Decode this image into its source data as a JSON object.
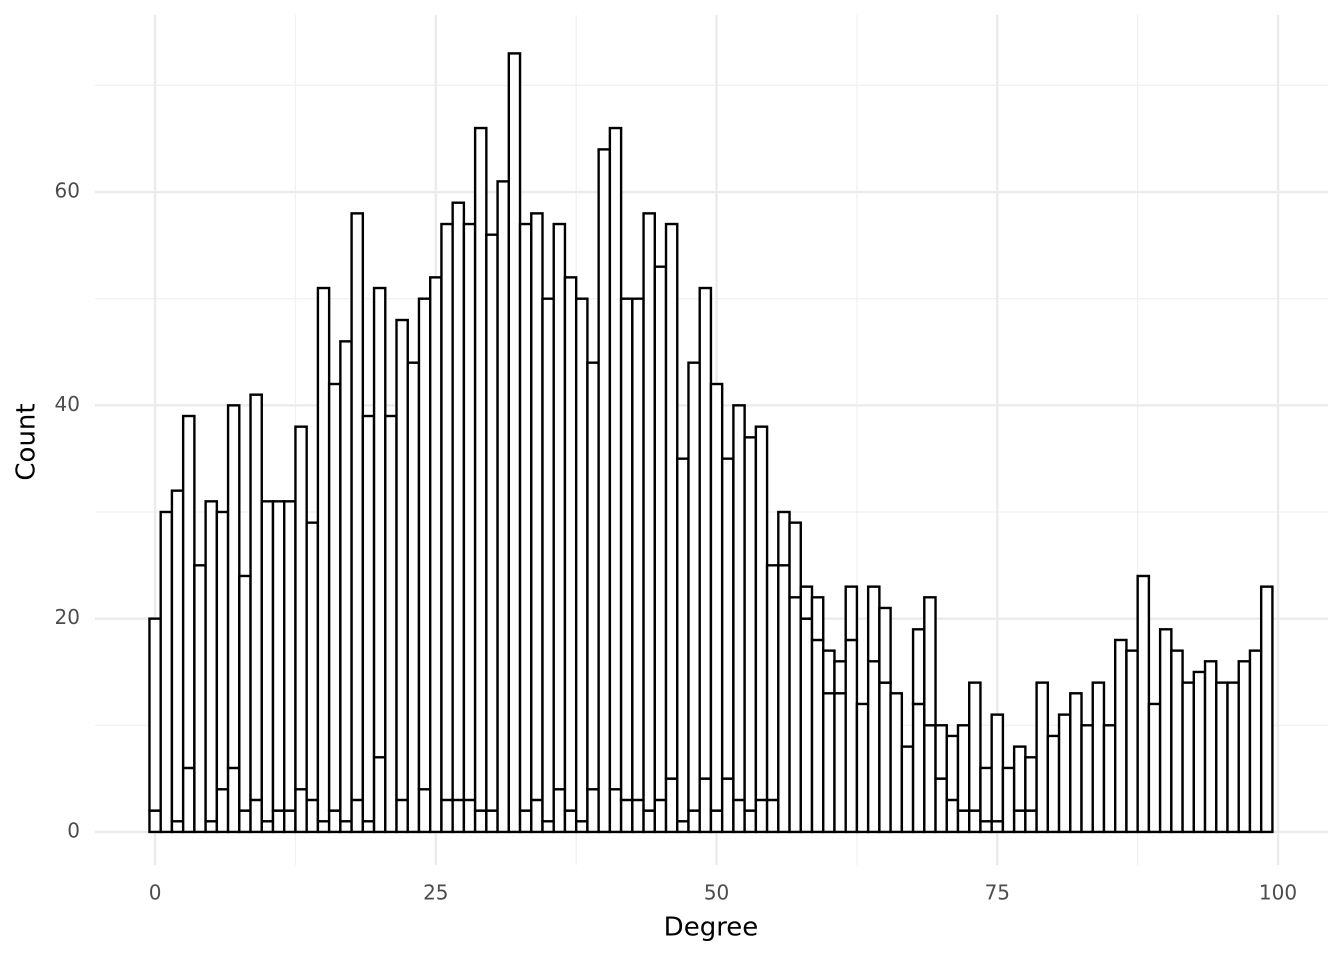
{
  "chart_data": {
    "type": "histogram",
    "x_label": "Degree",
    "y_label": "Count",
    "bins": [
      -0.5,
      0.5,
      1.5,
      2.5,
      3.5,
      4.5,
      5.5,
      6.5,
      7.5,
      8.5,
      9.5,
      10.5,
      11.5,
      12.5,
      13.5,
      14.5,
      15.5,
      16.5,
      17.5,
      18.5,
      19.5,
      20.5,
      21.5,
      22.5,
      23.5,
      24.5,
      25.5,
      26.5,
      27.5,
      28.5,
      29.5,
      30.5,
      31.5,
      32.5,
      33.5,
      34.5,
      35.5,
      36.5,
      37.5,
      38.5,
      39.5,
      40.5,
      41.5,
      42.5,
      43.5,
      44.5,
      45.5,
      46.5,
      47.5,
      48.5,
      49.5,
      50.5,
      51.5,
      52.5,
      53.5,
      54.5,
      55.5,
      56.5,
      57.5,
      58.5,
      59.5,
      60.5,
      61.5,
      62.5,
      63.5,
      64.5,
      65.5,
      66.5,
      67.5,
      68.5,
      69.5,
      70.5,
      71.5,
      72.5,
      73.5,
      74.5,
      75.5,
      76.5,
      77.5,
      78.5,
      79.5,
      80.5,
      81.5,
      82.5,
      83.5,
      84.5,
      85.5,
      86.5,
      87.5,
      88.5,
      89.5,
      90.5,
      91.5,
      92.5,
      93.5,
      94.5,
      95.5,
      96.5,
      97.5,
      98.5,
      99.5
    ],
    "series": [
      {
        "color": "#ffffff",
        "values": [
          2,
          0,
          1,
          6,
          0,
          1,
          4,
          6,
          2,
          3,
          1,
          2,
          2,
          4,
          3,
          1,
          2,
          1,
          3,
          1,
          7,
          0,
          3,
          0,
          4,
          0,
          3,
          3,
          3,
          2,
          2,
          0,
          0,
          2,
          3,
          1,
          4,
          2,
          1,
          4,
          0,
          4,
          3,
          3,
          2,
          3,
          5,
          1,
          2,
          5,
          2,
          5,
          3,
          2,
          3,
          3,
          25,
          22,
          20,
          18,
          13,
          13,
          18,
          0,
          16,
          14,
          0,
          8,
          12,
          10,
          5,
          3,
          2,
          2,
          1,
          1,
          0,
          2,
          2,
          0,
          0,
          0,
          0,
          0,
          0,
          0,
          0,
          0,
          0,
          0,
          0,
          0,
          0,
          0,
          0,
          0,
          0,
          0,
          0,
          0
        ]
      },
      {
        "color": "#ffffff",
        "values": [
          18,
          30,
          31,
          33,
          25,
          30,
          26,
          34,
          22,
          38,
          30,
          29,
          29,
          34,
          26,
          50,
          40,
          45,
          55,
          38,
          44,
          39,
          45,
          44,
          46,
          52,
          54,
          56,
          54,
          64,
          54,
          61,
          73,
          55,
          55,
          49,
          53,
          50,
          49,
          40,
          64,
          62,
          47,
          47,
          56,
          50,
          52,
          34,
          42,
          46,
          40,
          30,
          37,
          35,
          35,
          22,
          5,
          7,
          3,
          4,
          4,
          3,
          5,
          12,
          7,
          7,
          13,
          0,
          7,
          12,
          5,
          6,
          8,
          12,
          5,
          10,
          6,
          6,
          5,
          14,
          9,
          11,
          13,
          10,
          14,
          10,
          18,
          17,
          24,
          12,
          19,
          17,
          14,
          15,
          16,
          14,
          14,
          16,
          17,
          23
        ]
      }
    ],
    "outline": "#000000",
    "xlim": [
      -5.35,
      104.45
    ],
    "ylim": [
      -3.1,
      76.6
    ],
    "xticks": [
      0,
      25,
      50,
      75,
      100
    ],
    "yticks": [
      0,
      20,
      40,
      60
    ],
    "x_minor_ticks": [
      12.5,
      37.5,
      62.5,
      87.5
    ],
    "y_minor_ticks": [
      10,
      30,
      50,
      70
    ],
    "grid": true
  }
}
